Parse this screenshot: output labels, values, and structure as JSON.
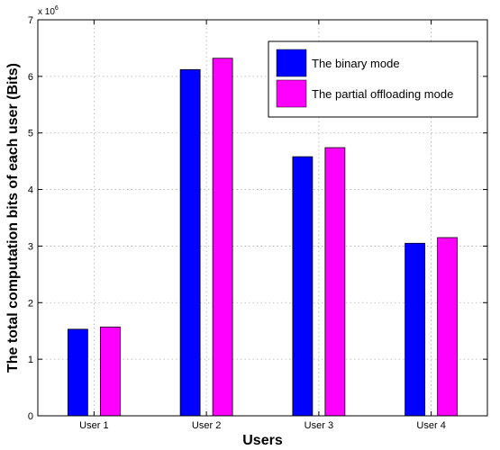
{
  "chart_data": {
    "type": "bar",
    "categories": [
      "User 1",
      "User 2",
      "User 3",
      "User 4"
    ],
    "series": [
      {
        "name": "The binary mode",
        "values": [
          1530000,
          6120000,
          4580000,
          3050000
        ],
        "color": "#0000ff"
      },
      {
        "name": "The partial offloading mode",
        "values": [
          1570000,
          6320000,
          4740000,
          3150000
        ],
        "color": "#ff00ff"
      }
    ],
    "xlabel": "Users",
    "ylabel": "The total computation bits of each user (Bits)",
    "ylim": [
      0,
      7000000
    ],
    "yticks": [
      "0",
      "1",
      "2",
      "3",
      "4",
      "5",
      "6",
      "7"
    ],
    "y_multiplier": {
      "base": "x 10",
      "exponent": "6"
    },
    "grid": true,
    "legend_position": "top-right"
  }
}
